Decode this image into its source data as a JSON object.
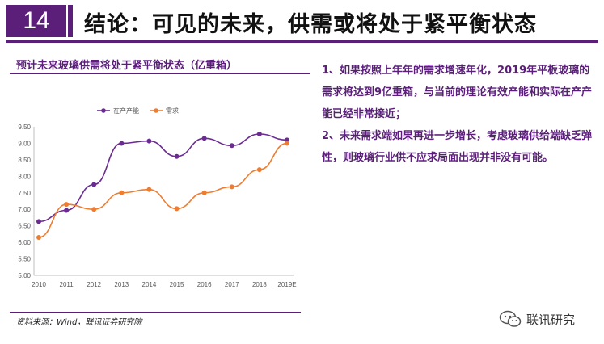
{
  "header": {
    "number": "14",
    "title": "结论：可见的未来，供需或将处于紧平衡状态"
  },
  "chart_title": "预计未来玻璃供需将处于紧平衡状态（亿重箱）",
  "source": "资料来源：Wind，联讯证券研究院",
  "body_text": [
    "1、如果按照上年年的需求增速年化，2019年平板玻璃的需求将达到9亿重箱，与当前的理论有效产能和实际在产产能已经非常接近；",
    "2、未来需求端如果再进一步增长，考虑玻璃供给端缺乏弹性，则玻璃行业供不应求局面出现并非没有可能。"
  ],
  "brand": {
    "icon": "wechat-icon",
    "label": "联讯研究"
  },
  "colors": {
    "accent": "#5b1f7a",
    "capacity": "#6a2c91",
    "demand": "#ed7d31"
  },
  "chart_data": {
    "type": "line",
    "title": "",
    "xlabel": "",
    "ylabel": "",
    "categories": [
      "2010",
      "2011",
      "2012",
      "2013",
      "2014",
      "2015",
      "2016",
      "2017",
      "2018",
      "2019E"
    ],
    "ylim": [
      5.0,
      9.5
    ],
    "yticks": [
      "5.00",
      "5.50",
      "6.00",
      "6.50",
      "7.00",
      "7.50",
      "8.00",
      "8.50",
      "9.00",
      "9.50"
    ],
    "grid": false,
    "legend_position": "top",
    "series": [
      {
        "name": "在产产能",
        "color": "#6a2c91",
        "values": [
          6.63,
          6.97,
          7.75,
          9.0,
          9.07,
          8.6,
          9.15,
          8.93,
          9.28,
          9.1
        ]
      },
      {
        "name": "需求",
        "color": "#ed7d31",
        "values": [
          6.15,
          7.15,
          7.0,
          7.5,
          7.6,
          7.02,
          7.5,
          7.68,
          8.2,
          9.0
        ]
      }
    ]
  }
}
